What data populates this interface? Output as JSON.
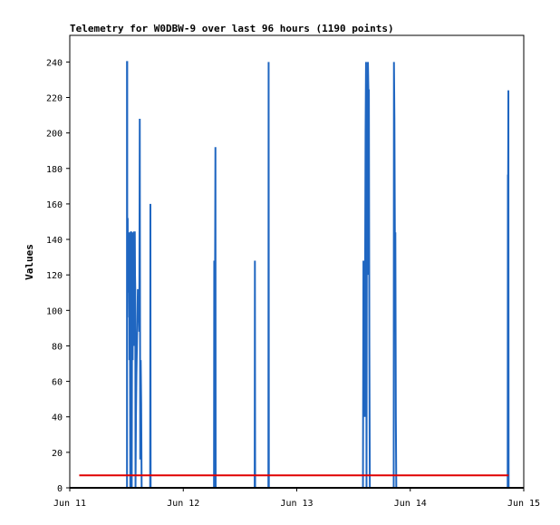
{
  "chart_data": {
    "type": "line",
    "title": "Telemetry for W0DBW-9 over last 96 hours (1190 points)",
    "ylabel": "Values",
    "xlabel": "",
    "ylim": [
      0,
      255
    ],
    "yticks": [
      0,
      20,
      40,
      60,
      80,
      100,
      120,
      140,
      160,
      180,
      200,
      220,
      240
    ],
    "xlim": [
      0,
      96
    ],
    "xticks": [
      {
        "label": "Jun 11",
        "value": 0
      },
      {
        "label": "Jun 12",
        "value": 24
      },
      {
        "label": "Jun 13",
        "value": 48
      },
      {
        "label": "Jun 14",
        "value": 72
      },
      {
        "label": "Jun 15",
        "value": 96
      }
    ],
    "grid": false,
    "legend": "none",
    "series": [
      {
        "color": "#1f66c1",
        "points": [
          [
            0,
            0
          ],
          [
            12.1,
            0
          ],
          [
            12.1,
            240
          ],
          [
            12.15,
            240
          ],
          [
            12.15,
            96
          ],
          [
            12.25,
            152
          ],
          [
            12.3,
            110
          ],
          [
            12.35,
            128
          ],
          [
            12.5,
            128
          ],
          [
            12.55,
            144
          ],
          [
            12.6,
            72
          ],
          [
            12.7,
            128
          ],
          [
            12.8,
            0
          ],
          [
            12.9,
            144
          ],
          [
            13.0,
            144
          ],
          [
            13.1,
            0
          ],
          [
            13.2,
            144
          ],
          [
            13.3,
            72
          ],
          [
            13.4,
            144
          ],
          [
            13.5,
            80
          ],
          [
            13.6,
            144
          ],
          [
            13.75,
            144
          ],
          [
            13.8,
            120
          ],
          [
            13.85,
            112
          ],
          [
            13.9,
            0
          ],
          [
            14.0,
            40
          ],
          [
            14.1,
            64
          ],
          [
            14.2,
            80
          ],
          [
            14.3,
            96
          ],
          [
            14.4,
            112
          ],
          [
            14.5,
            100
          ],
          [
            14.6,
            106
          ],
          [
            14.7,
            88
          ],
          [
            14.8,
            208
          ],
          [
            14.9,
            16
          ],
          [
            15.0,
            72
          ],
          [
            15.1,
            48
          ],
          [
            15.2,
            0
          ],
          [
            17.0,
            0
          ],
          [
            17.05,
            160
          ],
          [
            17.1,
            0
          ],
          [
            30.5,
            0
          ],
          [
            30.55,
            128
          ],
          [
            30.6,
            0
          ],
          [
            30.8,
            192
          ],
          [
            30.85,
            0
          ],
          [
            39.1,
            0
          ],
          [
            39.15,
            128
          ],
          [
            39.2,
            0
          ],
          [
            42.0,
            0
          ],
          [
            42.05,
            240
          ],
          [
            42.1,
            0
          ],
          [
            62.0,
            0
          ],
          [
            62.05,
            64
          ],
          [
            62.1,
            128
          ],
          [
            62.2,
            96
          ],
          [
            62.35,
            40
          ],
          [
            62.45,
            120
          ],
          [
            62.55,
            200
          ],
          [
            62.65,
            240
          ],
          [
            62.75,
            0
          ],
          [
            62.85,
            208
          ],
          [
            62.95,
            120
          ],
          [
            63.05,
            240
          ],
          [
            63.15,
            224
          ],
          [
            63.25,
            224
          ],
          [
            63.35,
            80
          ],
          [
            63.45,
            0
          ],
          [
            68.5,
            0
          ],
          [
            68.55,
            240
          ],
          [
            68.65,
            208
          ],
          [
            68.75,
            140
          ],
          [
            68.85,
            144
          ],
          [
            68.95,
            40
          ],
          [
            69.05,
            0
          ],
          [
            92.6,
            0
          ],
          [
            92.65,
            176
          ],
          [
            92.7,
            176
          ],
          [
            92.75,
            224
          ],
          [
            92.8,
            0
          ],
          [
            92.9,
            0
          ]
        ]
      },
      {
        "color": "#e00000",
        "points": [
          [
            2.0,
            7
          ],
          [
            92.8,
            7
          ]
        ]
      }
    ]
  }
}
